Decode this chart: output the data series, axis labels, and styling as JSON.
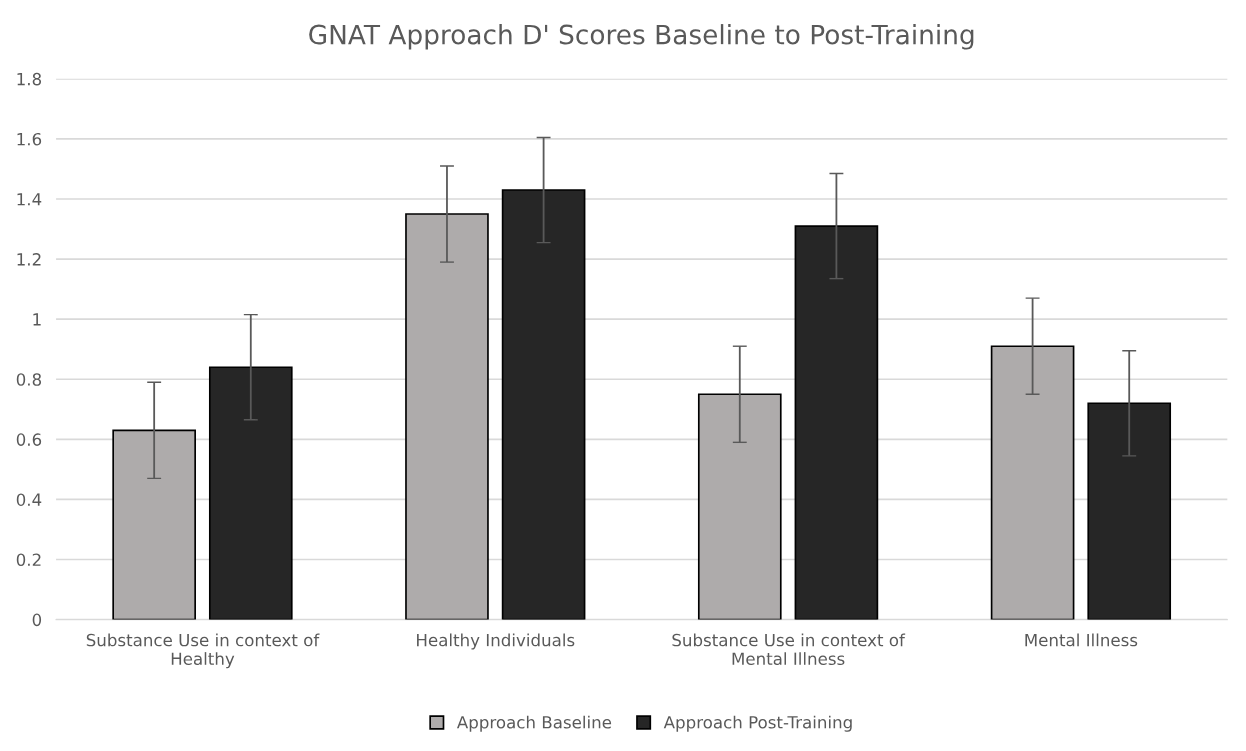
{
  "chart_data": {
    "type": "bar",
    "title": "GNAT Approach D' Scores Baseline to Post-Training",
    "categories": [
      "Substance Use in context of\nHealthy",
      "Healthy Individuals",
      "Substance Use in context of\nMental Illness",
      "Mental Illness"
    ],
    "series": [
      {
        "name": "Approach Baseline",
        "color": "#aeabab",
        "values": [
          0.63,
          1.35,
          0.75,
          0.91
        ],
        "errors": [
          0.16,
          0.16,
          0.16,
          0.16
        ]
      },
      {
        "name": "Approach Post-Training",
        "color": "#262626",
        "values": [
          0.84,
          1.43,
          1.31,
          0.72
        ],
        "errors": [
          0.175,
          0.175,
          0.175,
          0.175
        ]
      }
    ],
    "ylim": [
      0,
      1.8
    ],
    "yticks": [
      {
        "value": 0,
        "label": "0"
      },
      0.2,
      0.4,
      0.6,
      0.8,
      {
        "value": 1,
        "label": "1"
      },
      1.2,
      1.4,
      1.6,
      1.8
    ],
    "grid": "y",
    "legend": "bottom"
  }
}
